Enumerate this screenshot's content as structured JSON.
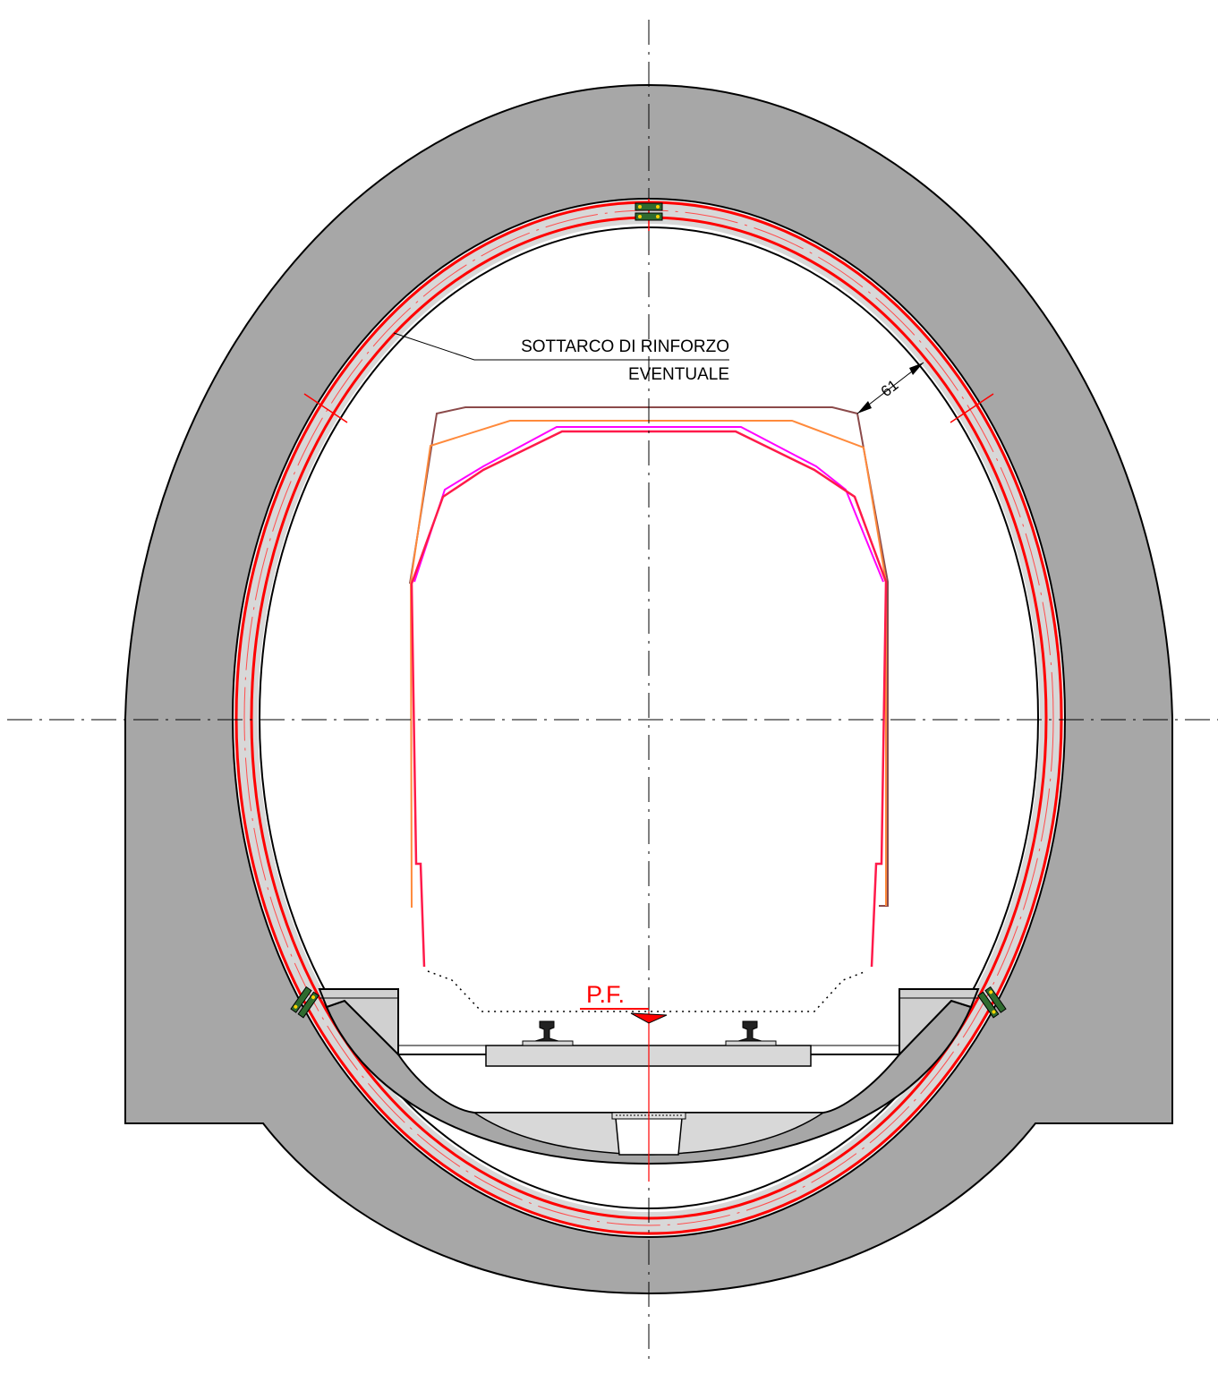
{
  "annotations": {
    "reinforcement_line1": "SOTTARCO DI RINFORZO",
    "reinforcement_line2": "EVENTUALE",
    "clearance_dimension": "61",
    "track_level": "P.F."
  },
  "colors": {
    "concrete": "#a7a7a7",
    "concrete_light": "#d8d8d8",
    "lining_red": "#ff0000",
    "gauge_brown": "#8b4a4a",
    "gauge_orange": "#ff8a3c",
    "gauge_magenta": "#ff00ff",
    "gauge_crimson": "#ff1a4a",
    "outline": "#000000"
  },
  "icons": [
    "rail-icon",
    "drain-channel-icon",
    "lining-joint-icon"
  ]
}
